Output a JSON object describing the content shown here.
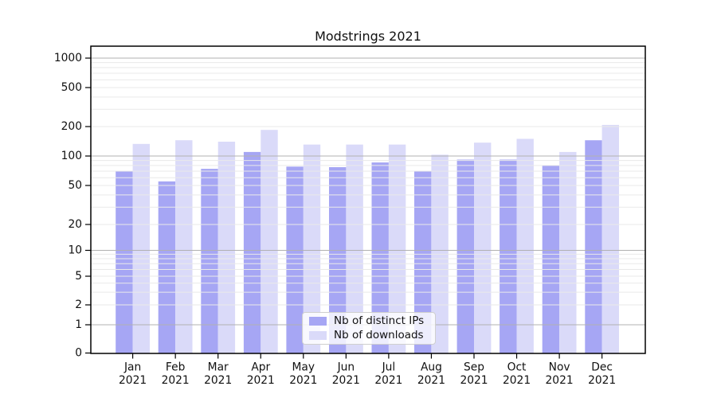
{
  "title": "Modstrings 2021",
  "colors": {
    "bar_distinct_ips": "#a6a6f4",
    "bar_downloads": "#dadaf9",
    "grid_major": "#b1b1b1",
    "grid_minor": "#e9e9e9",
    "axis": "#000000",
    "text": "#111111",
    "legend_border": "#cfcfcf"
  },
  "chart_data": {
    "type": "bar",
    "title": "Modstrings 2021",
    "categories": [
      "Jan",
      "Feb",
      "Mar",
      "Apr",
      "May",
      "Jun",
      "Jul",
      "Aug",
      "Sep",
      "Oct",
      "Nov",
      "Dec"
    ],
    "year_label": "2021",
    "series": [
      {
        "name": "Nb of distinct IPs",
        "values": [
          70,
          55,
          74,
          110,
          78,
          77,
          86,
          70,
          92,
          92,
          80,
          145
        ]
      },
      {
        "name": "Nb of downloads",
        "values": [
          133,
          145,
          140,
          185,
          131,
          131,
          131,
          103,
          137,
          150,
          110,
          208
        ]
      }
    ],
    "xlabel": "",
    "ylabel": "",
    "yscale": "symlog",
    "yticks": [
      0,
      1,
      2,
      5,
      10,
      20,
      50,
      100,
      200,
      500,
      1000
    ],
    "ylim": [
      0,
      1000
    ],
    "grid": true,
    "legend_position": "lower center"
  }
}
